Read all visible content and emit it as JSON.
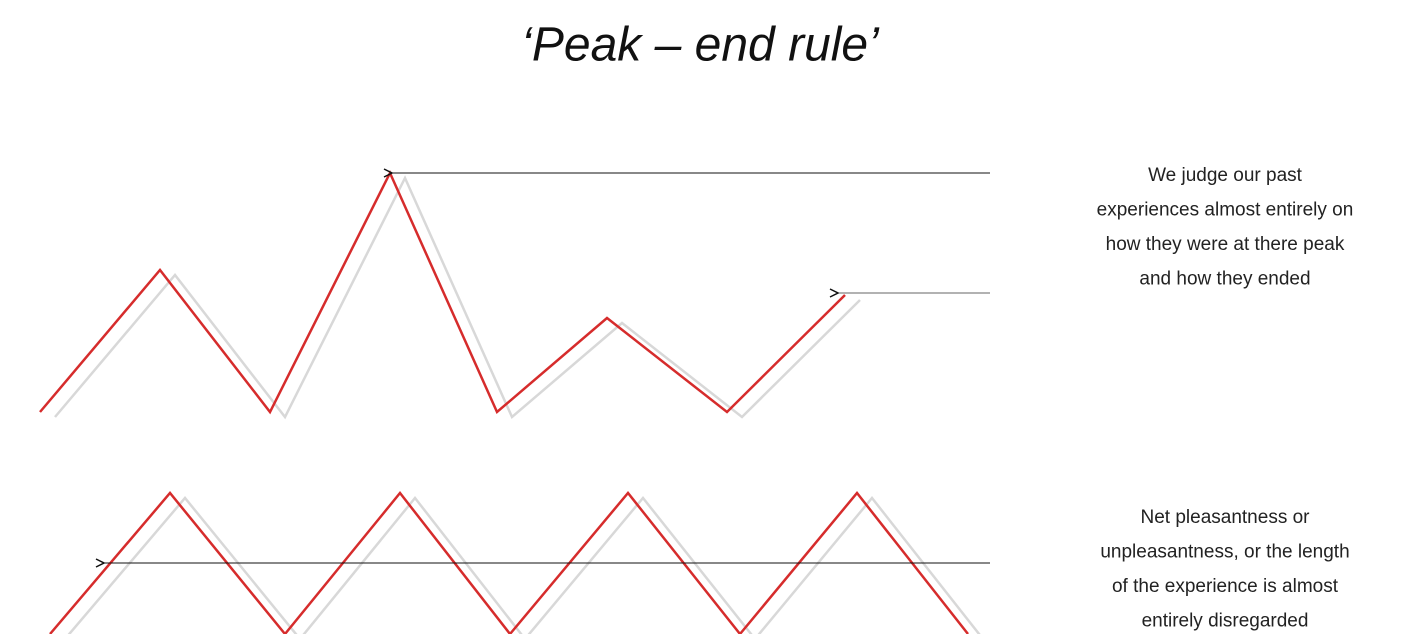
{
  "title": "‘Peak – end rule’",
  "annotations": [
    {
      "lines": [
        "We judge our past",
        "experiences almost entirely on",
        "how they were at there peak",
        "and how they ended"
      ]
    },
    {
      "lines": [
        "Net pleasantness or",
        "unpleasantness, or the length",
        "of the experience is almost",
        "entirely disregarded"
      ]
    }
  ]
}
